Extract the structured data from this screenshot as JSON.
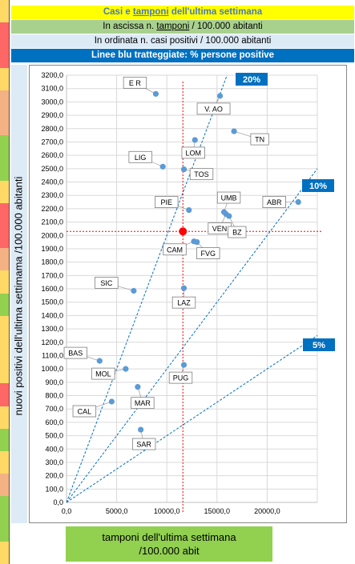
{
  "header": {
    "title_pre": "Casi e ",
    "title_ul": "tamponi",
    "title_post": " dell'ultima settimana",
    "x_desc_pre": "In ascissa n. ",
    "x_desc_ul": "tamponi",
    "x_desc_post": " / 100.000 abitanti",
    "y_desc": "In ordinata n. casi positivi / 100.000 abitanti",
    "lines_desc": "Linee blu tratteggiate: % persone positive"
  },
  "colors": {
    "title_bg": "#ffff00",
    "title_fg": "#4a7ab8",
    "x_desc_bg": "#a9d18e",
    "y_desc_bg": "#ddebf7",
    "lines_desc_bg": "#0070c0",
    "point": "#5b9bd5",
    "reference_lines": "#0070c0",
    "average_marker": "#ff0000",
    "xlabel_bg": "#92d050"
  },
  "stripes": [
    "#ffd966",
    "#ff6666",
    "#ff6666",
    "#ffd966",
    "#f4b183",
    "#f4b183",
    "#92d050",
    "#92d050",
    "#ffd966",
    "#ff6666",
    "#ff6666",
    "#f4b183",
    "#ffd966",
    "#92d050",
    "#ffd966",
    "#ffd966",
    "#ffd966",
    "#ff6666",
    "#ffd966",
    "#92d050",
    "#ffd966",
    "#f4b183",
    "#92d050",
    "#92d050",
    "#ffd966"
  ],
  "chart_data": {
    "type": "scatter",
    "xlabel_lines": [
      "tamponi dell'ultima settimana",
      "/100.000 abit"
    ],
    "ylabel": "nuovi positivi dell'ultima settimama /100.000 abitanti",
    "xlim": [
      0,
      25000
    ],
    "ylim": [
      0,
      3200
    ],
    "x_ticks": [
      0,
      5000,
      10000,
      15000,
      20000
    ],
    "x_tick_labels": [
      "0,0",
      "5000,0",
      "10000,0",
      "15000,0",
      "20000,0"
    ],
    "y_ticks": [
      0,
      100,
      200,
      300,
      400,
      500,
      600,
      700,
      800,
      900,
      1000,
      1100,
      1200,
      1300,
      1400,
      1500,
      1600,
      1700,
      1800,
      1900,
      2000,
      2100,
      2200,
      2300,
      2400,
      2500,
      2600,
      2700,
      2800,
      2900,
      3000,
      3100,
      3200
    ],
    "y_tick_labels": [
      "0,0",
      "100,0",
      "200,0",
      "300,0",
      "400,0",
      "500,0",
      "600,0",
      "700,0",
      "800,0",
      "900,0",
      "1000,0",
      "1100,0",
      "1200,0",
      "1300,0",
      "1400,0",
      "1500,0",
      "1600,0",
      "1700,0",
      "1800,0",
      "1900,0",
      "2000,0",
      "2100,0",
      "2200,0",
      "2300,0",
      "2400,0",
      "2500,0",
      "2600,0",
      "2700,0",
      "2800,0",
      "2900,0",
      "3000,0",
      "3100,0",
      "3200,0"
    ],
    "grid": true,
    "points": [
      {
        "label": "E R",
        "x": 8900,
        "y": 3060
      },
      {
        "label": "V. AO",
        "x": 15300,
        "y": 3045
      },
      {
        "label": "TN",
        "x": 16700,
        "y": 2780
      },
      {
        "label": "LOM",
        "x": 12800,
        "y": 2715
      },
      {
        "label": "LIG",
        "x": 9600,
        "y": 2515
      },
      {
        "label": "TOS",
        "x": 11700,
        "y": 2495
      },
      {
        "label": "ABR",
        "x": 23100,
        "y": 2250
      },
      {
        "label": "UMB",
        "x": 15700,
        "y": 2175
      },
      {
        "label": "PIE",
        "x": 12200,
        "y": 2190
      },
      {
        "label": "VEN",
        "x": 15900,
        "y": 2160
      },
      {
        "label": "BZ",
        "x": 16200,
        "y": 2145
      },
      {
        "label": "FVG",
        "x": 13000,
        "y": 1950
      },
      {
        "label": "CAM",
        "x": 12700,
        "y": 1955
      },
      {
        "label": "LAZ",
        "x": 11700,
        "y": 1605
      },
      {
        "label": "SIC",
        "x": 6700,
        "y": 1585
      },
      {
        "label": "BAS",
        "x": 3300,
        "y": 1060
      },
      {
        "label": "MOL",
        "x": 5900,
        "y": 1000
      },
      {
        "label": "PUG",
        "x": 11700,
        "y": 1030
      },
      {
        "label": "MAR",
        "x": 7100,
        "y": 865
      },
      {
        "label": "CAL",
        "x": 4500,
        "y": 755
      },
      {
        "label": "SAR",
        "x": 7400,
        "y": 545
      }
    ],
    "average": {
      "x": 11600,
      "y": 2030
    },
    "reference_lines": [
      {
        "label": "20%",
        "slope": 0.2
      },
      {
        "label": "10%",
        "slope": 0.1
      },
      {
        "label": "5%",
        "slope": 0.05
      }
    ]
  }
}
